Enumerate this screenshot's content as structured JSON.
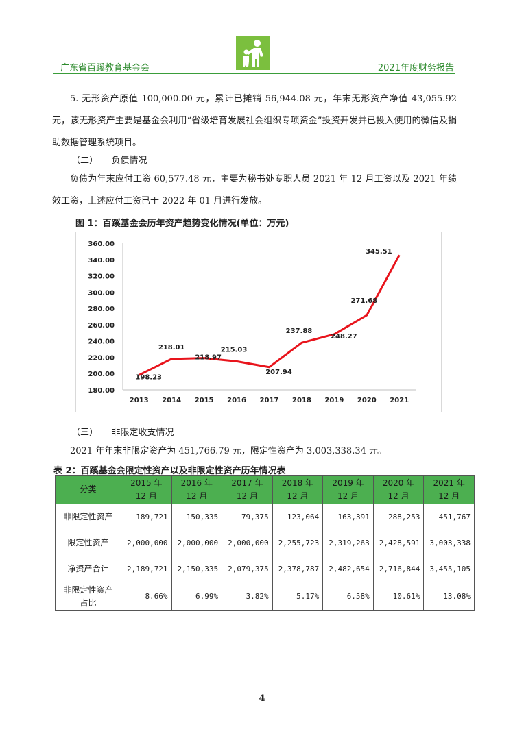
{
  "header": {
    "org": "广东省百蹊教育基金会",
    "report": "2021年度财务报告"
  },
  "body": {
    "p1": "5. 无形资产原值 100,000.00 元，累计已摊销 56,944.08 元，年末无形资产净值 43,055.92 元，该无形资产主要是基金会利用“省级培育发展社会组织专项资金”投资开发并已投入使用的微信及捐助数据管理系统项目。",
    "section2": "（二）　　负债情况",
    "p2": "负债为年末应付工资 60,577.48 元，主要为秘书处专职人员 2021 年 12 月工资以及 2021 年绩效工资，上述应付工资已于 2022 年 01 月进行发放。",
    "section3": "（三）　　非限定收支情况",
    "p3": "2021 年年末非限定资产为 451,766.79 元，限定性资产为 3,003,338.34 元。"
  },
  "figure": {
    "title": "图 1：百蹊基金会历年资产趋势变化情况(单位：万元)"
  },
  "chart_data": {
    "type": "line",
    "title": "",
    "categories": [
      "2013",
      "2014",
      "2015",
      "2016",
      "2017",
      "2018",
      "2019",
      "2020",
      "2021"
    ],
    "series": [
      {
        "values": [
          198.23,
          218.01,
          218.97,
          215.03,
          207.94,
          237.88,
          248.27,
          271.68,
          345.51
        ]
      }
    ],
    "labels": [
      "198.23",
      "218.01",
      "218.97",
      "215.03",
      "207.94",
      "237.88",
      "248.27",
      "271.68",
      "345.51"
    ],
    "yticks": [
      "180.00",
      "200.00",
      "220.00",
      "240.00",
      "260.00",
      "280.00",
      "300.00",
      "320.00",
      "340.00",
      "360.00"
    ],
    "ylim": [
      180,
      360
    ],
    "grid": false,
    "legend": "none",
    "line_color": "#e8141c"
  },
  "table": {
    "title": "表 2：百蹊基金会限定性资产以及非限定性资产历年情况表",
    "header_color": "#4caf50",
    "corner": "分类",
    "columns": [
      {
        "year": "2015 年",
        "month": "12 月"
      },
      {
        "year": "2016 年",
        "month": "12 月"
      },
      {
        "year": "2017 年",
        "month": "12 月"
      },
      {
        "year": "2018 年",
        "month": "12 月"
      },
      {
        "year": "2019 年",
        "month": "12 月"
      },
      {
        "year": "2020 年",
        "month": "12 月"
      },
      {
        "year": "2021 年",
        "month": "12 月"
      }
    ],
    "rows": [
      {
        "label": "非限定性资产",
        "label2": "",
        "values": [
          "189,721",
          "150,335",
          "79,375",
          "123,064",
          "163,391",
          "288,253",
          "451,767"
        ]
      },
      {
        "label": "限定性资产",
        "label2": "",
        "values": [
          "2,000,000",
          "2,000,000",
          "2,000,000",
          "2,255,723",
          "2,319,263",
          "2,428,591",
          "3,003,338"
        ]
      },
      {
        "label": "净资产合计",
        "label2": "",
        "values": [
          "2,189,721",
          "2,150,335",
          "2,079,375",
          "2,378,787",
          "2,482,654",
          "2,716,844",
          "3,455,105"
        ]
      },
      {
        "label": "非限定性资产",
        "label2": "占比",
        "values": [
          "8.66%",
          "6.99%",
          "3.82%",
          "5.17%",
          "6.58%",
          "10.61%",
          "13.08%"
        ]
      }
    ]
  },
  "footer": {
    "page": "4"
  }
}
